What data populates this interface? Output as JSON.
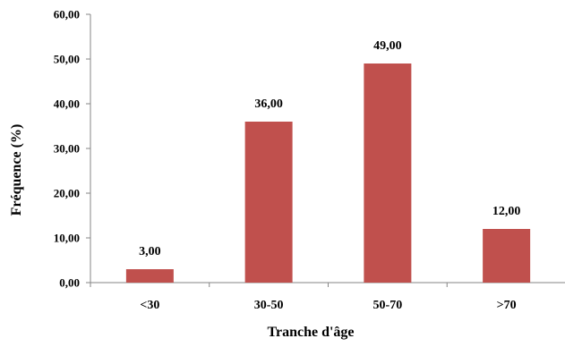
{
  "chart_data": {
    "type": "bar",
    "categories": [
      "<30",
      "30-50",
      "50-70",
      ">70"
    ],
    "values": [
      3.0,
      36.0,
      49.0,
      12.0
    ],
    "data_labels": [
      "3,00",
      "36,00",
      "49,00",
      "12,00"
    ],
    "y_ticks": [
      0,
      10,
      20,
      30,
      40,
      50,
      60
    ],
    "y_tick_labels": [
      "0,00",
      "10,00",
      "20,00",
      "30,00",
      "40,00",
      "50,00",
      "60,00"
    ],
    "ylim": [
      0,
      60
    ],
    "title": "",
    "xlabel": "Tranche d'âge",
    "ylabel": "Fréquence (%)",
    "grid": false,
    "legend": "none",
    "bar_color": "#c0504d",
    "axis_color": "#868686"
  }
}
